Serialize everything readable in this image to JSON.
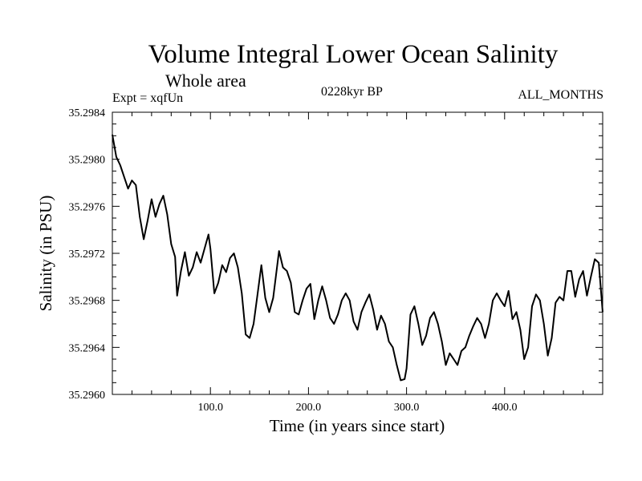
{
  "chart_data": {
    "type": "line",
    "title": "Volume Integral Lower Ocean Salinity",
    "subtitle": "Whole area",
    "experiment_label": "Expt = xqfUn",
    "period_label": "0228kyr BP",
    "months_label": "ALL_MONTHS",
    "xlabel": "Time (in years since start)",
    "ylabel": "Salinity (in PSU)",
    "xlim": [
      0,
      500
    ],
    "ylim": [
      35.296,
      35.2984
    ],
    "xticks": [
      100,
      200,
      300,
      400
    ],
    "xtick_labels": [
      "100.0",
      "200.0",
      "300.0",
      "400.0"
    ],
    "yticks": [
      35.296,
      35.2964,
      35.2968,
      35.2972,
      35.2976,
      35.298,
      35.2984
    ],
    "ytick_labels": [
      "35.2960",
      "35.2964",
      "35.2968",
      "35.2972",
      "35.2976",
      "35.2980",
      "35.2984"
    ],
    "grid": false,
    "series": [
      {
        "name": "Volume integral lower ocean salinity",
        "color": "#000000",
        "x": [
          0,
          4,
          8,
          12,
          16,
          20,
          24,
          28,
          32,
          36,
          40,
          44,
          48,
          52,
          56,
          60,
          64,
          66,
          70,
          74,
          78,
          82,
          86,
          90,
          94,
          98,
          100,
          104,
          108,
          112,
          116,
          120,
          124,
          128,
          132,
          136,
          140,
          144,
          148,
          152,
          156,
          160,
          164,
          170,
          174,
          178,
          182,
          186,
          190,
          194,
          198,
          202,
          206,
          210,
          214,
          218,
          222,
          226,
          230,
          234,
          238,
          242,
          246,
          250,
          254,
          258,
          262,
          266,
          270,
          274,
          278,
          282,
          286,
          290,
          294,
          298,
          300,
          304,
          308,
          312,
          316,
          320,
          324,
          328,
          332,
          336,
          340,
          344,
          348,
          352,
          356,
          360,
          364,
          368,
          372,
          376,
          380,
          384,
          388,
          392,
          396,
          400,
          404,
          408,
          412,
          416,
          420,
          424,
          428,
          432,
          436,
          440,
          444,
          448,
          452,
          456,
          460,
          464,
          468,
          472,
          476,
          480,
          484,
          488,
          492,
          496,
          500
        ],
        "values": [
          35.29821,
          35.29802,
          35.29795,
          35.29785,
          35.29775,
          35.29782,
          35.29778,
          35.29751,
          35.29732,
          35.29748,
          35.29766,
          35.29751,
          35.29762,
          35.29769,
          35.29753,
          35.29728,
          35.29717,
          35.29684,
          35.29705,
          35.29721,
          35.29701,
          35.29708,
          35.29721,
          35.29712,
          35.29724,
          35.29736,
          35.29724,
          35.29686,
          35.29695,
          35.2971,
          35.29704,
          35.29716,
          35.2972,
          35.29708,
          35.29686,
          35.29651,
          35.29648,
          35.2966,
          35.29685,
          35.2971,
          35.29682,
          35.2967,
          35.29682,
          35.29722,
          35.29708,
          35.29705,
          35.29695,
          35.2967,
          35.29668,
          35.2968,
          35.2969,
          35.29694,
          35.29664,
          35.2968,
          35.29692,
          35.2968,
          35.29665,
          35.2966,
          35.29668,
          35.2968,
          35.29686,
          35.2968,
          35.29662,
          35.29655,
          35.2967,
          35.29678,
          35.29685,
          35.29672,
          35.29655,
          35.29667,
          35.2966,
          35.29645,
          35.2964,
          35.29625,
          35.29612,
          35.29613,
          35.29622,
          35.29668,
          35.29675,
          35.2966,
          35.29642,
          35.2965,
          35.29665,
          35.2967,
          35.2966,
          35.29645,
          35.29625,
          35.29635,
          35.2963,
          35.29625,
          35.29637,
          35.2964,
          35.2965,
          35.29658,
          35.29665,
          35.2966,
          35.29648,
          35.2966,
          35.2968,
          35.29686,
          35.2968,
          35.29675,
          35.29688,
          35.29664,
          35.2967,
          35.29655,
          35.2963,
          35.2964,
          35.29675,
          35.29685,
          35.2968,
          35.2966,
          35.29633,
          35.29648,
          35.29678,
          35.29683,
          35.2968,
          35.29705,
          35.29705,
          35.29683,
          35.29698,
          35.29705,
          35.29684,
          35.297,
          35.29715,
          35.29712,
          35.2967
        ]
      }
    ]
  }
}
